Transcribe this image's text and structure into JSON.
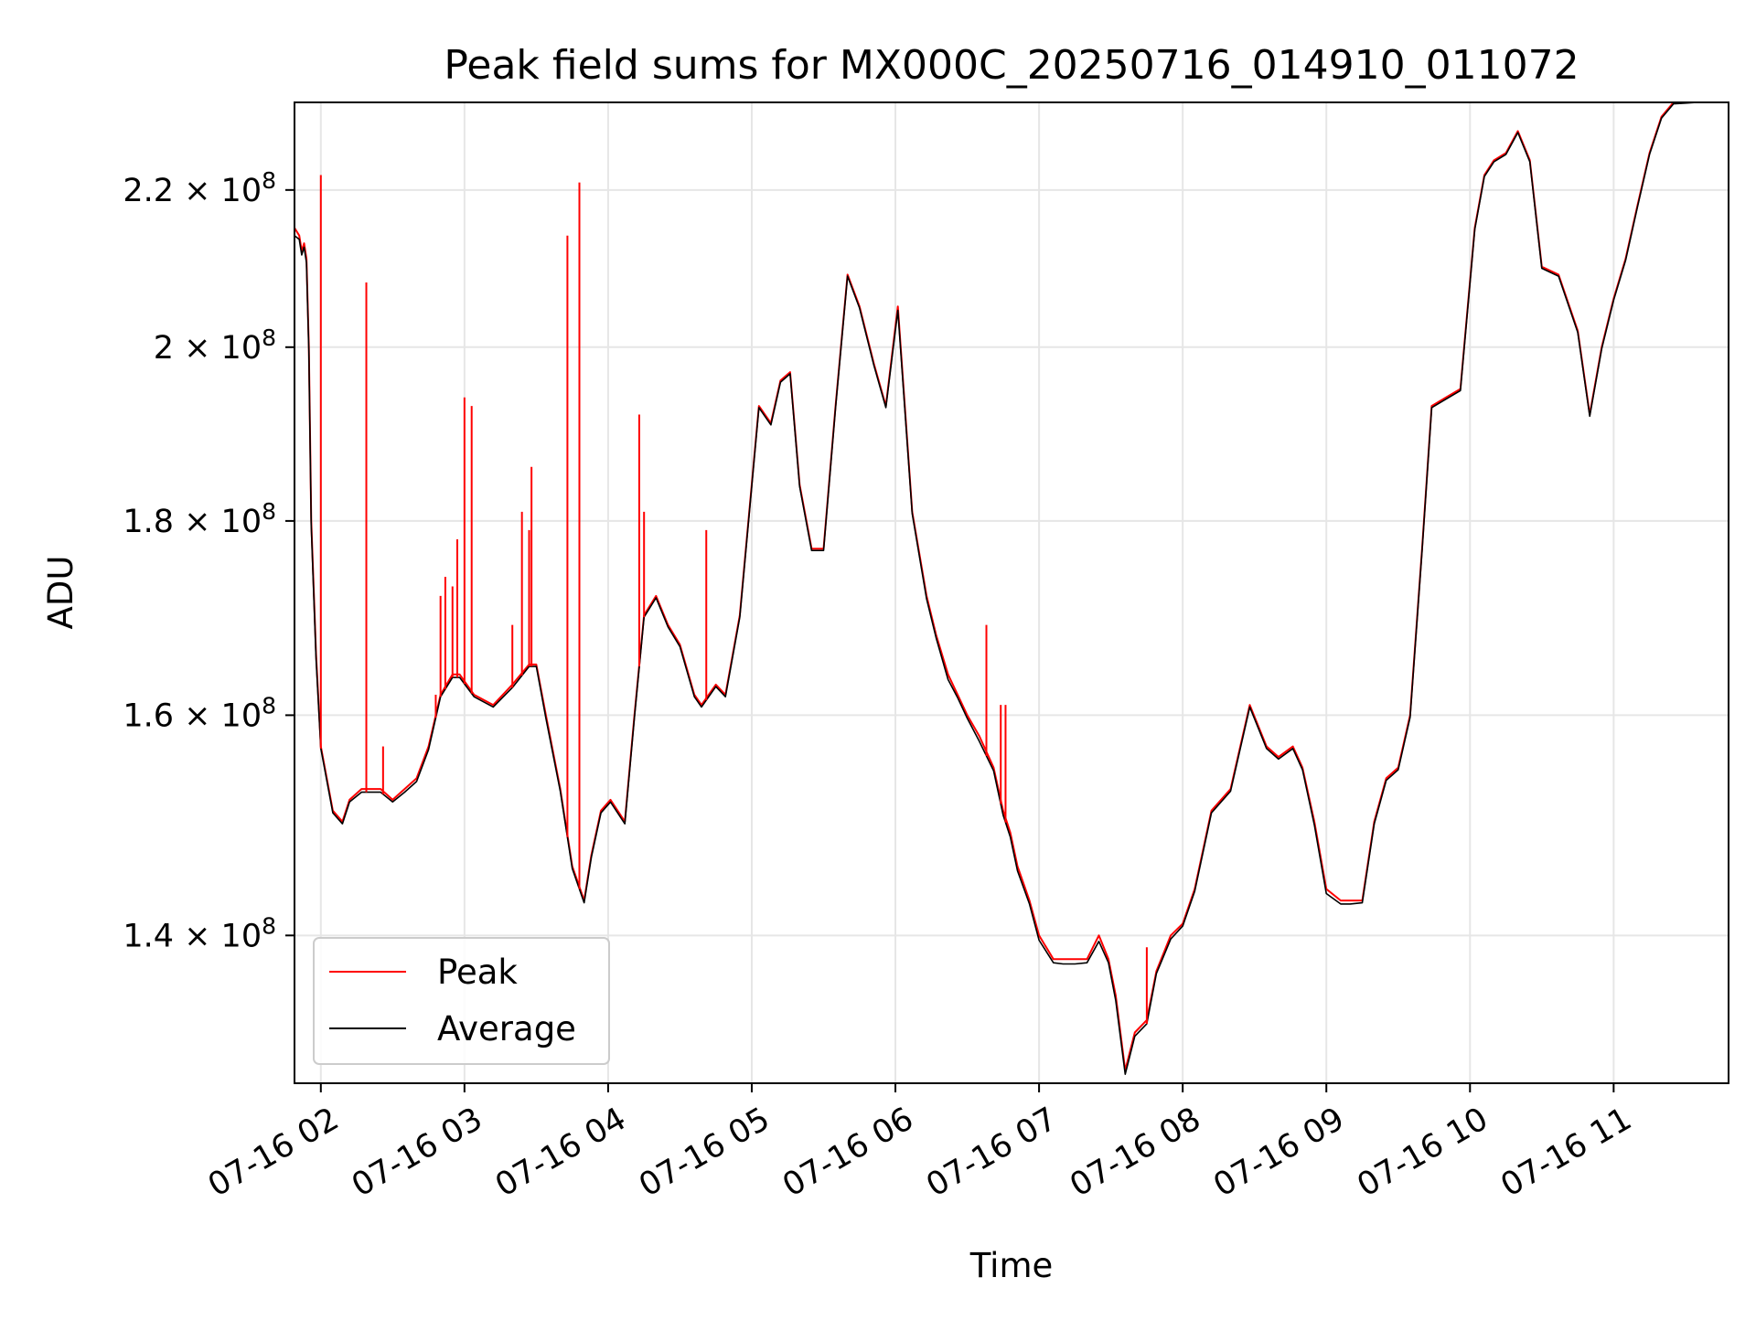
{
  "chart_data": {
    "type": "line",
    "title": "Peak field sums for MX000C_20250716_014910_011072",
    "xlabel": "Time",
    "ylabel": "ADU",
    "y_scale": "log",
    "xlim": [
      "2025-07-16 01:49",
      "2025-07-16 11:48"
    ],
    "ylim": [
      128000000,
      232000000
    ],
    "grid": true,
    "legend_position": "lower-left",
    "x_ticks": [
      "07-16 02",
      "07-16 03",
      "07-16 04",
      "07-16 05",
      "07-16 06",
      "07-16 07",
      "07-16 08",
      "07-16 09",
      "07-16 10",
      "07-16 11"
    ],
    "y_ticks": [
      {
        "value": 140000000,
        "mantissa": "1.4",
        "exp": "8"
      },
      {
        "value": 160000000,
        "mantissa": "1.6",
        "exp": "8"
      },
      {
        "value": 180000000,
        "mantissa": "1.8",
        "exp": "8"
      },
      {
        "value": 200000000,
        "mantissa": "2",
        "exp": "8"
      },
      {
        "value": 220000000,
        "mantissa": "2.2",
        "exp": "8"
      }
    ],
    "series": [
      {
        "name": "Peak",
        "color": "#ff0000",
        "x": [
          "01:49",
          "01:51",
          "01:52",
          "01:53",
          "01:54",
          "01:55",
          "01:56",
          "01:58",
          "02:00",
          "02:05",
          "02:09",
          "02:12",
          "02:17",
          "02:25",
          "02:30",
          "02:35",
          "02:40",
          "02:45",
          "02:50",
          "02:55",
          "02:58",
          "03:04",
          "03:12",
          "03:20",
          "03:27",
          "03:30",
          "03:34",
          "03:40",
          "03:45",
          "03:50",
          "03:53",
          "03:57",
          "04:01",
          "04:07",
          "04:11",
          "04:15",
          "04:20",
          "04:25",
          "04:30",
          "04:36",
          "04:39",
          "04:45",
          "04:49",
          "04:55",
          "05:03",
          "05:08",
          "05:12",
          "05:16",
          "05:20",
          "05:25",
          "05:30",
          "05:35",
          "05:40",
          "05:45",
          "05:51",
          "05:56",
          "06:01",
          "06:07",
          "06:13",
          "06:17",
          "06:22",
          "06:26",
          "06:30",
          "06:35",
          "06:41",
          "06:45",
          "06:48",
          "06:51",
          "06:56",
          "07:00",
          "07:06",
          "07:10",
          "07:15",
          "07:20",
          "07:25",
          "07:29",
          "07:32",
          "07:36",
          "07:40",
          "07:45",
          "07:49",
          "07:55",
          "08:00",
          "08:05",
          "08:12",
          "08:20",
          "08:28",
          "08:35",
          "08:40",
          "08:46",
          "08:50",
          "08:55",
          "09:00",
          "09:06",
          "09:10",
          "09:15",
          "09:20",
          "09:25",
          "09:30",
          "09:35",
          "09:40",
          "09:44",
          "09:50",
          "09:56",
          "10:02",
          "10:06",
          "10:10",
          "10:15",
          "10:20",
          "10:25",
          "10:30",
          "10:37",
          "10:45",
          "10:50",
          "10:55",
          "11:00",
          "11:05",
          "11:10",
          "11:15",
          "11:20",
          "11:25",
          "11:30",
          "11:35",
          "11:40",
          "11:48"
        ],
        "values": [
          215000000,
          214000000,
          212000000,
          213000000,
          211000000,
          200000000,
          180000000,
          166000000,
          157000000,
          151000000,
          150000000,
          152000000,
          153000000,
          153000000,
          152000000,
          153000000,
          154000000,
          157000000,
          162000000,
          164000000,
          164000000,
          162000000,
          161000000,
          163000000,
          165000000,
          165000000,
          160000000,
          153000000,
          146000000,
          143000000,
          147000000,
          151000000,
          152000000,
          150000000,
          160000000,
          170000000,
          172000000,
          169000000,
          167000000,
          162000000,
          161000000,
          163000000,
          162000000,
          170000000,
          193000000,
          191000000,
          196000000,
          197000000,
          184000000,
          177000000,
          177000000,
          193000000,
          209000000,
          205000000,
          198000000,
          193000000,
          205000000,
          181000000,
          172000000,
          168000000,
          164000000,
          162000000,
          160000000,
          158000000,
          155000000,
          151000000,
          149000000,
          146000000,
          143000000,
          140000000,
          138000000,
          138000000,
          138000000,
          138000000,
          140000000,
          138000000,
          135000000,
          129000000,
          132000000,
          133000000,
          137000000,
          140000000,
          141000000,
          144000000,
          151000000,
          153000000,
          161000000,
          157000000,
          156000000,
          157000000,
          155000000,
          150000000,
          144000000,
          143000000,
          143000000,
          143000000,
          150000000,
          154000000,
          155000000,
          160000000,
          177000000,
          193000000,
          194000000,
          195000000,
          215000000,
          222000000,
          224000000,
          225000000,
          228000000,
          224000000,
          210000000,
          209000000,
          202000000,
          192000000,
          200000000,
          206000000,
          211000000,
          218000000,
          225000000,
          230000000,
          232000000,
          232000000,
          232000000,
          232000000,
          232000000
        ]
      },
      {
        "name": "Average",
        "color": "#000000",
        "x": [
          "01:49",
          "01:51",
          "01:52",
          "01:53",
          "01:54",
          "01:55",
          "01:56",
          "01:58",
          "02:00",
          "02:05",
          "02:09",
          "02:12",
          "02:17",
          "02:25",
          "02:30",
          "02:35",
          "02:40",
          "02:45",
          "02:50",
          "02:55",
          "02:58",
          "03:04",
          "03:12",
          "03:20",
          "03:27",
          "03:30",
          "03:34",
          "03:40",
          "03:45",
          "03:50",
          "03:53",
          "03:57",
          "04:01",
          "04:07",
          "04:11",
          "04:15",
          "04:20",
          "04:25",
          "04:30",
          "04:36",
          "04:39",
          "04:45",
          "04:49",
          "04:55",
          "05:03",
          "05:08",
          "05:12",
          "05:16",
          "05:20",
          "05:25",
          "05:30",
          "05:35",
          "05:40",
          "05:45",
          "05:51",
          "05:56",
          "06:01",
          "06:07",
          "06:13",
          "06:17",
          "06:22",
          "06:26",
          "06:30",
          "06:35",
          "06:41",
          "06:45",
          "06:48",
          "06:51",
          "06:56",
          "07:00",
          "07:06",
          "07:10",
          "07:15",
          "07:20",
          "07:25",
          "07:29",
          "07:32",
          "07:36",
          "07:40",
          "07:45",
          "07:49",
          "07:55",
          "08:00",
          "08:05",
          "08:12",
          "08:20",
          "08:28",
          "08:35",
          "08:40",
          "08:46",
          "08:50",
          "08:55",
          "09:00",
          "09:06",
          "09:10",
          "09:15",
          "09:20",
          "09:25",
          "09:30",
          "09:35",
          "09:40",
          "09:44",
          "09:50",
          "09:56",
          "10:02",
          "10:06",
          "10:10",
          "10:15",
          "10:20",
          "10:25",
          "10:30",
          "10:37",
          "10:45",
          "10:50",
          "10:55",
          "11:00",
          "11:05",
          "11:10",
          "11:15",
          "11:20",
          "11:25",
          "11:30",
          "11:35",
          "11:40",
          "11:48"
        ],
        "values": [
          214000000,
          213500000,
          211500000,
          212500000,
          210500000,
          199500000,
          179500000,
          165500000,
          156800000,
          150800000,
          149800000,
          151800000,
          152700000,
          152700000,
          151800000,
          152700000,
          153700000,
          156700000,
          161800000,
          163700000,
          163700000,
          161800000,
          160800000,
          162700000,
          164800000,
          164800000,
          159700000,
          152800000,
          145800000,
          142800000,
          146800000,
          150800000,
          151800000,
          149800000,
          159800000,
          169800000,
          171800000,
          168800000,
          166800000,
          161800000,
          160800000,
          162800000,
          161800000,
          169800000,
          192800000,
          190800000,
          195800000,
          196800000,
          183800000,
          176800000,
          176800000,
          192800000,
          208800000,
          204800000,
          197800000,
          192800000,
          204500000,
          180800000,
          171700000,
          167700000,
          163500000,
          161700000,
          159700000,
          157500000,
          154700000,
          150600000,
          148600000,
          145600000,
          142700000,
          139600000,
          137700000,
          137600000,
          137600000,
          137700000,
          139500000,
          137700000,
          134600000,
          128700000,
          131700000,
          132700000,
          136800000,
          139700000,
          140800000,
          143800000,
          150800000,
          152800000,
          160800000,
          156800000,
          155800000,
          156800000,
          154800000,
          149700000,
          143600000,
          142700000,
          142700000,
          142800000,
          149800000,
          153800000,
          154800000,
          159800000,
          176800000,
          192800000,
          193800000,
          194800000,
          214800000,
          221800000,
          223800000,
          224800000,
          227800000,
          223800000,
          209800000,
          208800000,
          201800000,
          191800000,
          199800000,
          205800000,
          210800000,
          217800000,
          224800000,
          229800000,
          231800000,
          231900000,
          232000000,
          232000000,
          232000000
        ]
      }
    ],
    "peak_spikes": [
      {
        "x": "02:00",
        "value": 222000000
      },
      {
        "x": "02:19",
        "value": 208000000
      },
      {
        "x": "02:26",
        "value": 157000000
      },
      {
        "x": "02:48",
        "value": 162000000
      },
      {
        "x": "02:50",
        "value": 172000000
      },
      {
        "x": "02:52",
        "value": 174000000
      },
      {
        "x": "02:55",
        "value": 173000000
      },
      {
        "x": "02:57",
        "value": 178000000
      },
      {
        "x": "03:00",
        "value": 194000000
      },
      {
        "x": "03:03",
        "value": 193000000
      },
      {
        "x": "03:20",
        "value": 169000000
      },
      {
        "x": "03:24",
        "value": 181000000
      },
      {
        "x": "03:27",
        "value": 179000000
      },
      {
        "x": "03:28",
        "value": 186000000
      },
      {
        "x": "03:43",
        "value": 214000000
      },
      {
        "x": "03:48",
        "value": 221000000
      },
      {
        "x": "04:13",
        "value": 192000000
      },
      {
        "x": "04:15",
        "value": 181000000
      },
      {
        "x": "04:41",
        "value": 179000000
      },
      {
        "x": "06:38",
        "value": 169000000
      },
      {
        "x": "06:44",
        "value": 161000000
      },
      {
        "x": "06:46",
        "value": 161000000
      },
      {
        "x": "07:45",
        "value": 139000000
      }
    ],
    "legend": [
      "Peak",
      "Average"
    ]
  }
}
